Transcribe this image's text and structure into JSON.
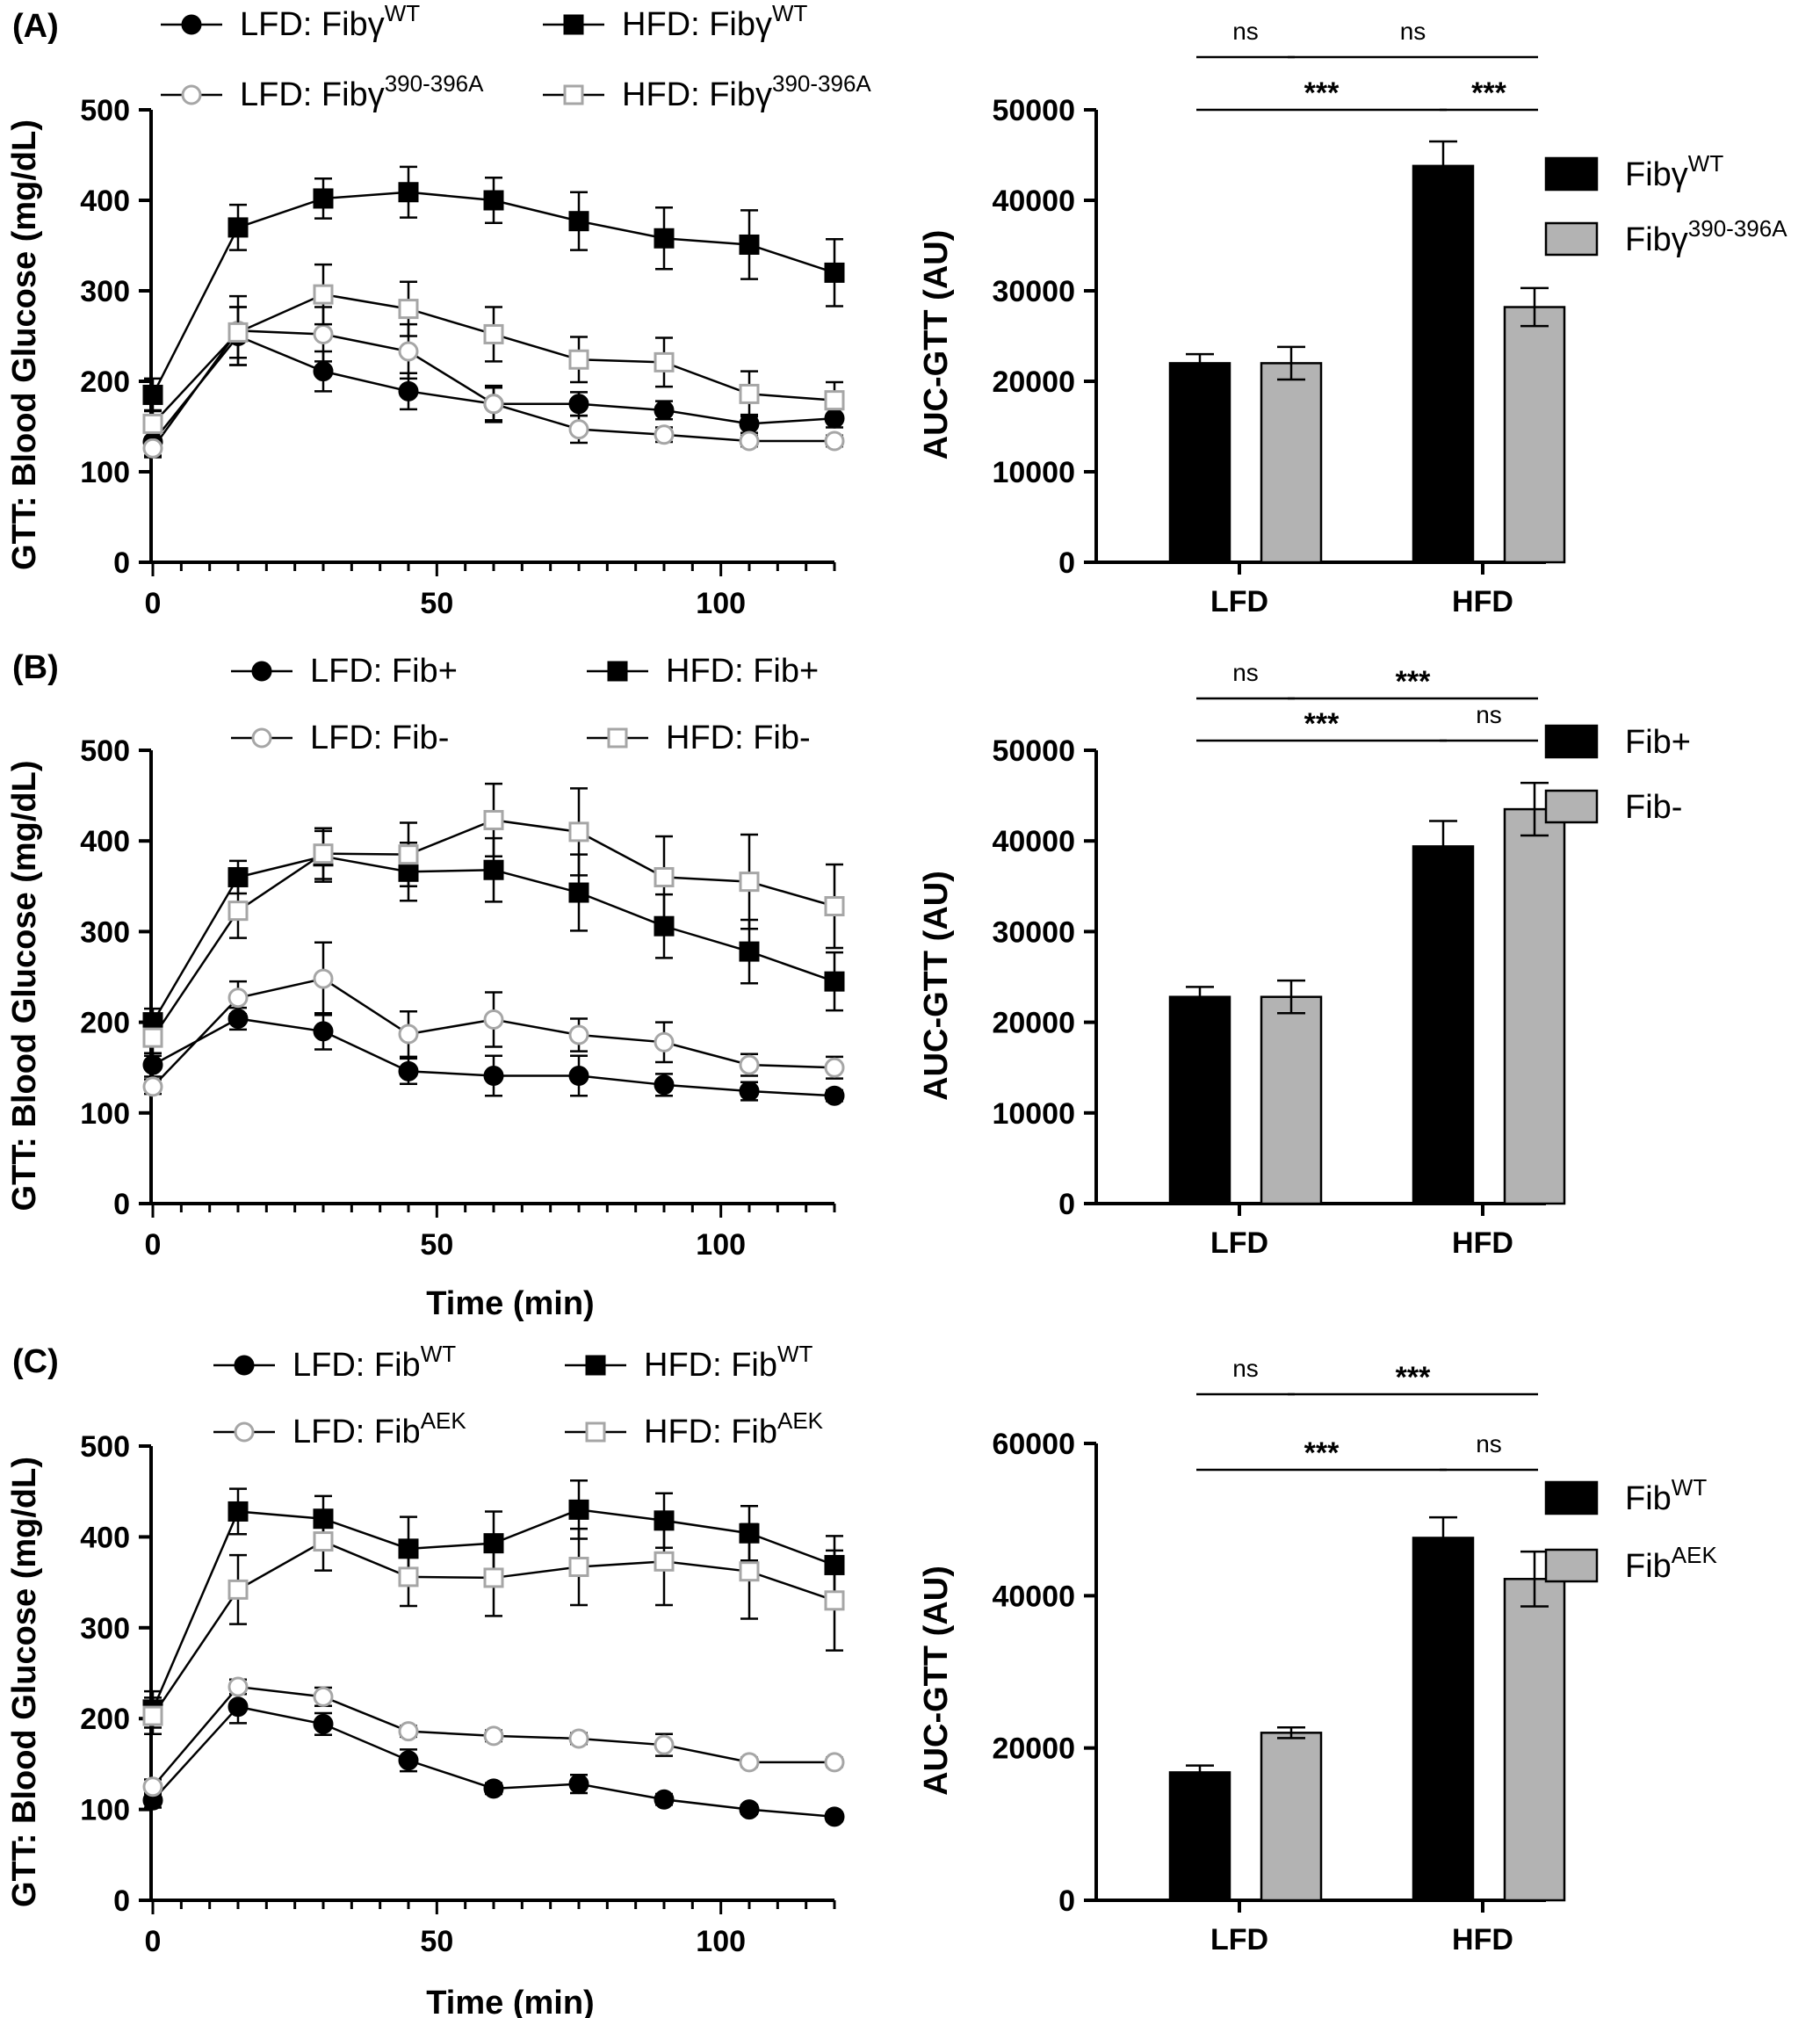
{
  "chart_data": [
    {
      "panel": "(A)",
      "type": "line",
      "ylabel": "GTT: Blood Glucose  (mg/dL)",
      "xlabel": "",
      "xlim": [
        0,
        120
      ],
      "ylim": [
        0,
        500
      ],
      "xticks": [
        "0",
        "50",
        "100"
      ],
      "yticks": [
        "0",
        "100",
        "200",
        "300",
        "400",
        "500"
      ],
      "x": [
        0,
        15,
        30,
        45,
        60,
        75,
        90,
        105,
        120
      ],
      "series": [
        {
          "name": "LFD: Fibγ",
          "sup": "WT",
          "marker": "circle",
          "fill": "#000000",
          "stroke": "#000000",
          "values": [
            133,
            250,
            211,
            189,
            175,
            175,
            168,
            153,
            159
          ],
          "errors": [
            15,
            32,
            22,
            20,
            18,
            13,
            10,
            10,
            10
          ]
        },
        {
          "name": "HFD: Fibγ",
          "sup": "WT",
          "marker": "square",
          "fill": "#000000",
          "stroke": "#000000",
          "values": [
            185,
            370,
            402,
            409,
            400,
            377,
            358,
            351,
            320
          ],
          "errors": [
            18,
            25,
            22,
            28,
            25,
            32,
            34,
            38,
            37
          ]
        },
        {
          "name": "LFD: Fibγ",
          "sup": "390-396A",
          "marker": "circle",
          "fill": "#ffffff",
          "stroke": "#a6a6a6",
          "values": [
            126,
            256,
            252,
            233,
            175,
            147,
            141,
            134,
            134
          ],
          "errors": [
            10,
            38,
            30,
            30,
            20,
            15,
            8,
            6,
            6
          ]
        },
        {
          "name": "HFD: Fibγ",
          "sup": "390-396A",
          "marker": "square",
          "fill": "#ffffff",
          "stroke": "#a6a6a6",
          "values": [
            153,
            254,
            296,
            280,
            252,
            224,
            221,
            186,
            179
          ],
          "errors": [
            15,
            28,
            33,
            30,
            30,
            25,
            27,
            25,
            20
          ]
        }
      ]
    },
    {
      "panel": "",
      "type": "bar",
      "ylabel": "AUC-GTT (AU)",
      "categories": [
        "LFD",
        "HFD"
      ],
      "ylim": [
        0,
        50000
      ],
      "yticks": [
        "0",
        "10000",
        "20000",
        "30000",
        "40000",
        "50000"
      ],
      "series": [
        {
          "name": "Fibγ",
          "sup": "WT",
          "color": "#000000",
          "values": [
            22000,
            43800
          ],
          "errors": [
            1000,
            2700
          ]
        },
        {
          "name": "Fibγ",
          "sup": "390-396A",
          "color": "#b3b3b3",
          "values": [
            22000,
            28200
          ],
          "errors": [
            1800,
            2100
          ]
        }
      ],
      "significance": [
        {
          "label": "ns",
          "row": 0,
          "from": "LFD-1",
          "to": "LFD-2"
        },
        {
          "label": "ns",
          "row": 0,
          "from": "LFD-2",
          "to": "HFD-2"
        },
        {
          "label": "***",
          "row": 1,
          "from": "LFD-1",
          "to": "HFD-1"
        },
        {
          "label": "***",
          "row": 1,
          "from": "HFD-1",
          "to": "HFD-2"
        }
      ]
    },
    {
      "panel": "(B)",
      "type": "line",
      "ylabel": "GTT: Blood Glucose  (mg/dL)",
      "xlabel": "Time (min)",
      "xlim": [
        0,
        120
      ],
      "ylim": [
        0,
        500
      ],
      "xticks": [
        "0",
        "50",
        "100"
      ],
      "yticks": [
        "0",
        "100",
        "200",
        "300",
        "400",
        "500"
      ],
      "x": [
        0,
        15,
        30,
        45,
        60,
        75,
        90,
        105,
        120
      ],
      "series": [
        {
          "name": "LFD: Fib+",
          "sup": "",
          "marker": "circle",
          "fill": "#000000",
          "stroke": "#000000",
          "values": [
            153,
            204,
            190,
            146,
            141,
            141,
            131,
            124,
            119
          ],
          "errors": [
            13,
            12,
            20,
            14,
            22,
            22,
            12,
            10,
            6
          ]
        },
        {
          "name": "HFD: Fib+",
          "sup": "",
          "marker": "square",
          "fill": "#000000",
          "stroke": "#000000",
          "values": [
            200,
            360,
            383,
            366,
            368,
            343,
            306,
            278,
            245
          ],
          "errors": [
            15,
            18,
            28,
            32,
            35,
            42,
            35,
            35,
            32
          ]
        },
        {
          "name": "LFD: Fib-",
          "sup": "",
          "marker": "circle",
          "fill": "#ffffff",
          "stroke": "#a6a6a6",
          "values": [
            129,
            227,
            248,
            187,
            203,
            186,
            178,
            153,
            150
          ],
          "errors": [
            8,
            18,
            40,
            25,
            30,
            18,
            22,
            12,
            12
          ]
        },
        {
          "name": "HFD: Fib-",
          "sup": "",
          "marker": "square",
          "fill": "#ffffff",
          "stroke": "#a6a6a6",
          "values": [
            183,
            323,
            386,
            385,
            423,
            410,
            360,
            355,
            328
          ],
          "errors": [
            20,
            30,
            28,
            35,
            40,
            48,
            45,
            52,
            46
          ]
        }
      ]
    },
    {
      "panel": "",
      "type": "bar",
      "ylabel": "AUC-GTT (AU)",
      "categories": [
        "LFD",
        "HFD"
      ],
      "ylim": [
        0,
        50000
      ],
      "yticks": [
        "0",
        "10000",
        "20000",
        "30000",
        "40000",
        "50000"
      ],
      "series": [
        {
          "name": "Fib+",
          "sup": "",
          "color": "#000000",
          "values": [
            22800,
            39400
          ],
          "errors": [
            1100,
            2800
          ]
        },
        {
          "name": "Fib-",
          "sup": "",
          "color": "#b3b3b3",
          "values": [
            22800,
            43500
          ],
          "errors": [
            1800,
            2900
          ]
        }
      ],
      "significance": [
        {
          "label": "ns",
          "row": 0,
          "from": "LFD-1",
          "to": "LFD-2"
        },
        {
          "label": "***",
          "row": 0,
          "from": "LFD-2",
          "to": "HFD-2"
        },
        {
          "label": "***",
          "row": 1,
          "from": "LFD-1",
          "to": "HFD-1"
        },
        {
          "label": "ns",
          "row": 1,
          "from": "HFD-1",
          "to": "HFD-2"
        }
      ]
    },
    {
      "panel": "(C)",
      "type": "line",
      "ylabel": "GTT: Blood Glucose  (mg/dL)",
      "xlabel": "Time (min)",
      "xlim": [
        0,
        120
      ],
      "ylim": [
        0,
        500
      ],
      "xticks": [
        "0",
        "50",
        "100"
      ],
      "yticks": [
        "0",
        "100",
        "200",
        "300",
        "400",
        "500"
      ],
      "x": [
        0,
        15,
        30,
        45,
        60,
        75,
        90,
        105,
        120
      ],
      "series": [
        {
          "name": "LFD: Fib",
          "sup": "WT",
          "marker": "circle",
          "fill": "#000000",
          "stroke": "#000000",
          "values": [
            110,
            213,
            194,
            154,
            123,
            128,
            111,
            100,
            92
          ],
          "errors": [
            8,
            18,
            12,
            12,
            6,
            10,
            6,
            5,
            5
          ]
        },
        {
          "name": "HFD: Fib",
          "sup": "WT",
          "marker": "square",
          "fill": "#000000",
          "stroke": "#000000",
          "values": [
            210,
            428,
            420,
            387,
            393,
            430,
            418,
            404,
            369
          ],
          "errors": [
            20,
            25,
            25,
            35,
            35,
            32,
            30,
            30,
            32
          ]
        },
        {
          "name": "LFD: Fib",
          "sup": "AEK",
          "marker": "circle",
          "fill": "#ffffff",
          "stroke": "#a6a6a6",
          "values": [
            125,
            235,
            224,
            186,
            181,
            178,
            171,
            152,
            152
          ],
          "errors": [
            8,
            8,
            10,
            6,
            6,
            6,
            12,
            5,
            5
          ]
        },
        {
          "name": "HFD: Fib",
          "sup": "AEK",
          "marker": "square",
          "fill": "#ffffff",
          "stroke": "#a6a6a6",
          "values": [
            203,
            342,
            395,
            356,
            355,
            367,
            373,
            362,
            330
          ],
          "errors": [
            20,
            38,
            32,
            32,
            42,
            42,
            48,
            52,
            55
          ]
        }
      ]
    },
    {
      "panel": "",
      "type": "bar",
      "ylabel": "AUC-GTT (AU)",
      "categories": [
        "LFD",
        "HFD"
      ],
      "ylim": [
        0,
        60000
      ],
      "yticks": [
        "0",
        "20000",
        "40000",
        "60000"
      ],
      "series": [
        {
          "name": "Fib",
          "sup": "WT",
          "color": "#000000",
          "values": [
            16800,
            47600
          ],
          "errors": [
            900,
            2700
          ]
        },
        {
          "name": "Fib",
          "sup": "AEK",
          "color": "#b3b3b3",
          "values": [
            22000,
            42200
          ],
          "errors": [
            700,
            3600
          ]
        }
      ],
      "significance": [
        {
          "label": "ns",
          "row": 0,
          "from": "LFD-1",
          "to": "LFD-2"
        },
        {
          "label": "***",
          "row": 0,
          "from": "LFD-2",
          "to": "HFD-2"
        },
        {
          "label": "***",
          "row": 1,
          "from": "LFD-1",
          "to": "HFD-1"
        },
        {
          "label": "ns",
          "row": 1,
          "from": "HFD-1",
          "to": "HFD-2"
        }
      ]
    }
  ]
}
